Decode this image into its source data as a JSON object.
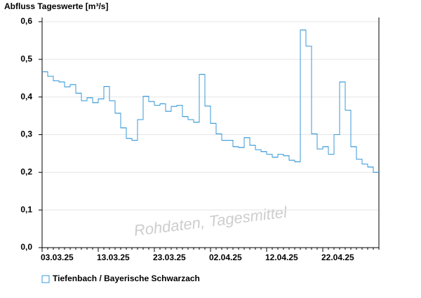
{
  "chart_data": {
    "type": "step",
    "title": "Abfluss Tageswerte [m³/s]",
    "annotation": "Rohdaten, Tagesmittel",
    "color": "#3a9ad9",
    "grid": true,
    "legend": "bottom-left",
    "x": [
      "03.03.25",
      "04.03.25",
      "05.03.25",
      "06.03.25",
      "07.03.25",
      "08.03.25",
      "09.03.25",
      "10.03.25",
      "11.03.25",
      "12.03.25",
      "13.03.25",
      "14.03.25",
      "15.03.25",
      "16.03.25",
      "17.03.25",
      "18.03.25",
      "19.03.25",
      "20.03.25",
      "21.03.25",
      "22.03.25",
      "23.03.25",
      "24.03.25",
      "25.03.25",
      "26.03.25",
      "27.03.25",
      "28.03.25",
      "29.03.25",
      "30.03.25",
      "31.03.25",
      "01.04.25",
      "02.04.25",
      "03.04.25",
      "04.04.25",
      "05.04.25",
      "06.04.25",
      "07.04.25",
      "08.04.25",
      "09.04.25",
      "10.04.25",
      "11.04.25",
      "12.04.25",
      "13.04.25",
      "14.04.25",
      "15.04.25",
      "16.04.25",
      "17.04.25",
      "18.04.25",
      "19.04.25",
      "20.04.25",
      "21.04.25",
      "22.04.25",
      "23.04.25",
      "24.04.25",
      "25.04.25",
      "26.04.25",
      "27.04.25",
      "28.04.25",
      "29.04.25",
      "30.04.25",
      "01.05.25"
    ],
    "series": [
      {
        "name": "Tiefenbach / Bayerische Schwarzach",
        "color": "#3a9ad9",
        "values": [
          0.467,
          0.455,
          0.443,
          0.44,
          0.427,
          0.433,
          0.41,
          0.39,
          0.398,
          0.385,
          0.395,
          0.428,
          0.39,
          0.357,
          0.318,
          0.29,
          0.285,
          0.34,
          0.402,
          0.388,
          0.378,
          0.382,
          0.362,
          0.375,
          0.378,
          0.348,
          0.34,
          0.333,
          0.46,
          0.376,
          0.33,
          0.302,
          0.285,
          0.285,
          0.268,
          0.266,
          0.292,
          0.272,
          0.26,
          0.255,
          0.248,
          0.24,
          0.248,
          0.244,
          0.232,
          0.228,
          0.578,
          0.535,
          0.302,
          0.262,
          0.268,
          0.248,
          0.3,
          0.44,
          0.365,
          0.268,
          0.235,
          0.222,
          0.214,
          0.2
        ]
      }
    ],
    "xticks": [
      "03.03.25",
      "13.03.25",
      "23.03.25",
      "02.04.25",
      "12.04.25",
      "22.04.25"
    ],
    "ylim": [
      0,
      0.6
    ],
    "yticks": [
      {
        "value": 0,
        "label": "0,0"
      },
      {
        "value": 0.1,
        "label": "0,1"
      },
      {
        "value": 0.2,
        "label": "0,2"
      },
      {
        "value": 0.3,
        "label": "0,3"
      },
      {
        "value": 0.4,
        "label": "0,4"
      },
      {
        "value": 0.5,
        "label": "0,5"
      },
      {
        "value": 0.6,
        "label": "0,6"
      }
    ]
  }
}
